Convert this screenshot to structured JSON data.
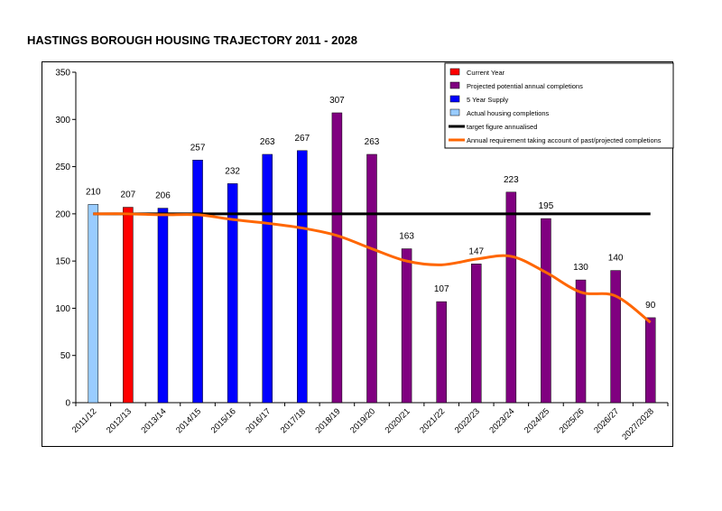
{
  "chart_data": {
    "type": "bar",
    "title": "HASTINGS BOROUGH HOUSING TRAJECTORY 2011 - 2028",
    "categories": [
      "2011/12",
      "2012/13",
      "2013/14",
      "2014/15",
      "2015/16",
      "2016/17",
      "2017/18",
      "2018/19",
      "2019/20",
      "2020/21",
      "2021/22",
      "2022/23",
      "2023/24",
      "2024/25",
      "2025/26",
      "2026/27",
      "2027/2028"
    ],
    "values": [
      210,
      207,
      206,
      257,
      232,
      263,
      267,
      307,
      263,
      163,
      107,
      147,
      223,
      195,
      130,
      140,
      90
    ],
    "bar_series": [
      "actual",
      "current",
      "supply",
      "supply",
      "supply",
      "supply",
      "supply",
      "projected",
      "projected",
      "projected",
      "projected",
      "projected",
      "projected",
      "projected",
      "projected",
      "projected",
      "projected"
    ],
    "data_labels": [
      "210",
      "207",
      "206",
      "257",
      "232",
      "263",
      "267",
      "307",
      "263",
      "163",
      "107",
      "147",
      "223",
      "195",
      "130",
      "140",
      "90"
    ],
    "ylim": [
      0,
      350
    ],
    "yticks": [
      0,
      50,
      100,
      150,
      200,
      250,
      300,
      350
    ],
    "ytick_labels": [
      "0",
      "50",
      "100",
      "150",
      "200",
      "250",
      "300",
      "350"
    ],
    "target_line": {
      "name": "target figure annualised",
      "value": 200
    },
    "requirement_line": {
      "name": "Annual requirement taking account of past/projected completions",
      "values": [
        200,
        200,
        199,
        199,
        194,
        190,
        185,
        177,
        163,
        150,
        146,
        152,
        155,
        138,
        117,
        113,
        85
      ]
    },
    "legend": [
      {
        "label": "Current Year",
        "color": "#ff0000",
        "kind": "box"
      },
      {
        "label": "Projected potential annual completions",
        "color": "#800080",
        "kind": "box"
      },
      {
        "label": "5 Year Supply",
        "color": "#0000ff",
        "kind": "box"
      },
      {
        "label": "Actual housing completions",
        "color": "#99ccff",
        "kind": "box"
      },
      {
        "label": "target figure annualised",
        "color": "#000000",
        "kind": "line"
      },
      {
        "label": "Annual requirement taking account of past/projected completions",
        "color": "#ff6600",
        "kind": "line"
      }
    ],
    "legend_position": "top-right",
    "colors": {
      "actual": "#99ccff",
      "current": "#ff0000",
      "supply": "#0000ff",
      "projected": "#800080",
      "target": "#000000",
      "requirement": "#ff6600"
    }
  }
}
